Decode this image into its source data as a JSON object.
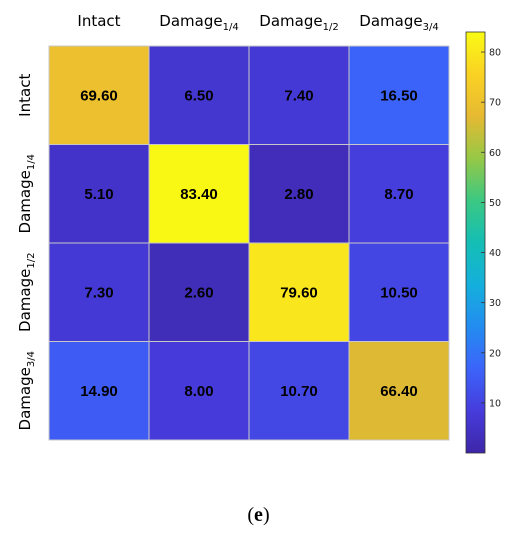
{
  "caption": {
    "open": "(",
    "letter": "e",
    "close": ")"
  },
  "chart_data": {
    "type": "heatmap",
    "columns": [
      {
        "base": "Intact",
        "sub": ""
      },
      {
        "base": "Damage",
        "sub": "1/4"
      },
      {
        "base": "Damage",
        "sub": "1/2"
      },
      {
        "base": "Damage",
        "sub": "3/4"
      }
    ],
    "rows": [
      {
        "base": "Intact",
        "sub": ""
      },
      {
        "base": "Damage",
        "sub": "1/4"
      },
      {
        "base": "Damage",
        "sub": "1/2"
      },
      {
        "base": "Damage",
        "sub": "3/4"
      }
    ],
    "values": [
      [
        69.6,
        6.5,
        7.4,
        16.5
      ],
      [
        5.1,
        83.4,
        2.8,
        8.7
      ],
      [
        7.3,
        2.6,
        79.6,
        10.5
      ],
      [
        14.9,
        8.0,
        10.7,
        66.4
      ]
    ],
    "colorbar": {
      "min": 0,
      "max": 84,
      "ticks": [
        10,
        20,
        30,
        40,
        50,
        60,
        70,
        80
      ],
      "colormap": "parula"
    }
  }
}
